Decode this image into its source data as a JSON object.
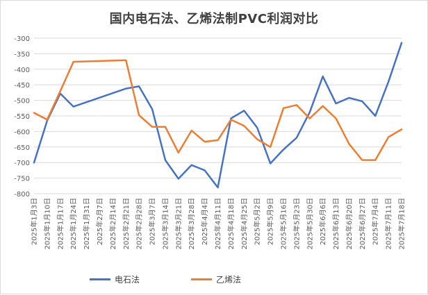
{
  "chart_data": {
    "type": "line",
    "title": "国内电石法、乙烯法制PVC利润对比",
    "xlabel": "",
    "ylabel": "",
    "ylim": [
      -800,
      -300
    ],
    "yticks": [
      -300,
      -350,
      -400,
      -450,
      -500,
      -550,
      -600,
      -650,
      -700,
      -750,
      -800
    ],
    "grid": true,
    "legend_position": "bottom",
    "categories": [
      "2025年1月3日",
      "2025年1月10日",
      "2025年1月17日",
      "2025年1月24日",
      "2025年1月31日",
      "2025年2月7日",
      "2025年2月14日",
      "2025年2月21日",
      "2025年2月28日",
      "2025年3月7日",
      "2025年3月14日",
      "2025年3月21日",
      "2025年3月28日",
      "2025年4月4日",
      "2025年4月11日",
      "2025年4月18日",
      "2025年4月25日",
      "2025年5月2日",
      "2025年5月9日",
      "2025年5月16日",
      "2025年5月23日",
      "2025年5月30日",
      "2025年6月6日",
      "2025年6月13日",
      "2025年6月20日",
      "2025年6月27日",
      "2025年7月4日",
      "2025年7月11日",
      "2025年7月18日"
    ],
    "series": [
      {
        "name": "电石法",
        "color": "#4472C4",
        "points": [
          {
            "i": 0,
            "v": -700
          },
          {
            "i": 1,
            "v": -565
          },
          {
            "i": 2,
            "v": -478
          },
          {
            "i": 3,
            "v": -520
          },
          {
            "i": 7,
            "v": -462
          },
          {
            "i": 8,
            "v": -455
          },
          {
            "i": 9,
            "v": -528
          },
          {
            "i": 10,
            "v": -692
          },
          {
            "i": 11,
            "v": -752
          },
          {
            "i": 12,
            "v": -708
          },
          {
            "i": 13,
            "v": -725
          },
          {
            "i": 14,
            "v": -780
          },
          {
            "i": 15,
            "v": -558
          },
          {
            "i": 16,
            "v": -533
          },
          {
            "i": 17,
            "v": -588
          },
          {
            "i": 18,
            "v": -703
          },
          {
            "i": 19,
            "v": -658
          },
          {
            "i": 20,
            "v": -620
          },
          {
            "i": 21,
            "v": -538
          },
          {
            "i": 22,
            "v": -423
          },
          {
            "i": 23,
            "v": -510
          },
          {
            "i": 24,
            "v": -492
          },
          {
            "i": 25,
            "v": -503
          },
          {
            "i": 26,
            "v": -550
          },
          {
            "i": 27,
            "v": -440
          },
          {
            "i": 28,
            "v": -315
          }
        ]
      },
      {
        "name": "乙烯法",
        "color": "#ED7D31",
        "points": [
          {
            "i": 0,
            "v": -540
          },
          {
            "i": 1,
            "v": -562
          },
          {
            "i": 2,
            "v": -470
          },
          {
            "i": 3,
            "v": -376
          },
          {
            "i": 7,
            "v": -371
          },
          {
            "i": 8,
            "v": -548
          },
          {
            "i": 9,
            "v": -585
          },
          {
            "i": 10,
            "v": -585
          },
          {
            "i": 11,
            "v": -668
          },
          {
            "i": 12,
            "v": -597
          },
          {
            "i": 13,
            "v": -633
          },
          {
            "i": 14,
            "v": -628
          },
          {
            "i": 15,
            "v": -562
          },
          {
            "i": 16,
            "v": -582
          },
          {
            "i": 17,
            "v": -625
          },
          {
            "i": 18,
            "v": -650
          },
          {
            "i": 19,
            "v": -525
          },
          {
            "i": 20,
            "v": -515
          },
          {
            "i": 21,
            "v": -558
          },
          {
            "i": 22,
            "v": -518
          },
          {
            "i": 23,
            "v": -558
          },
          {
            "i": 24,
            "v": -640
          },
          {
            "i": 25,
            "v": -692
          },
          {
            "i": 26,
            "v": -692
          },
          {
            "i": 27,
            "v": -618
          },
          {
            "i": 28,
            "v": -593
          }
        ]
      }
    ]
  }
}
